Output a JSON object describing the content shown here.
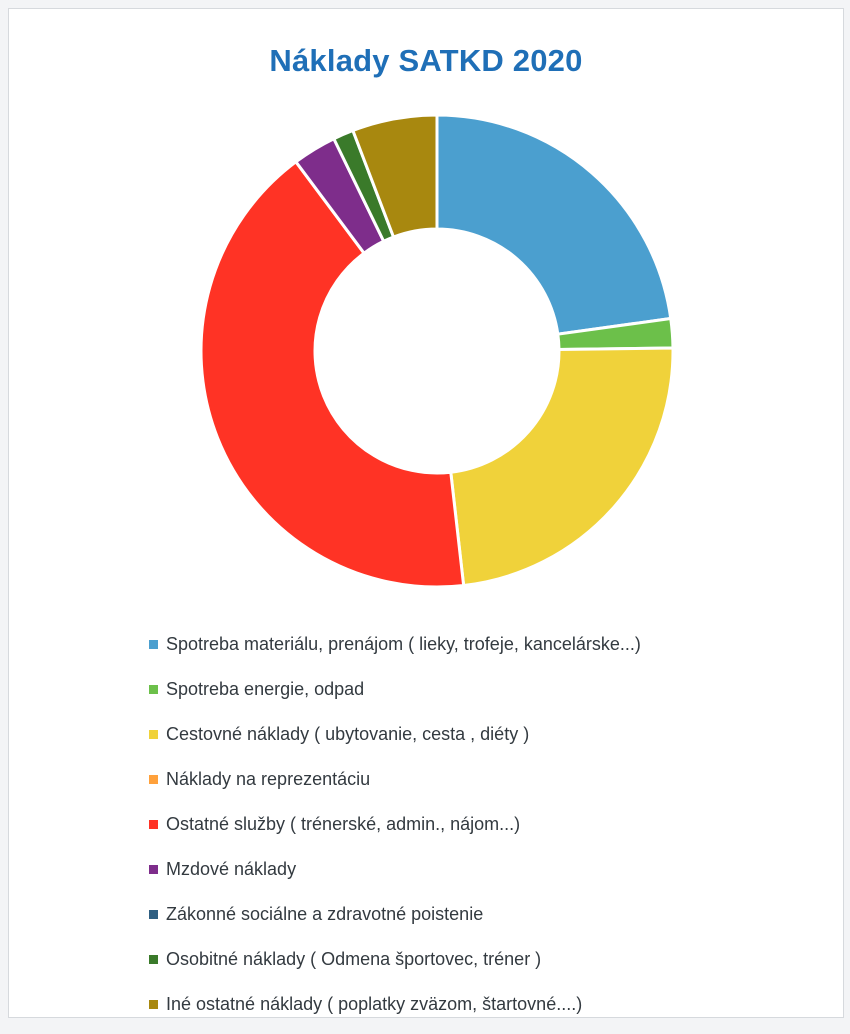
{
  "chart_data": {
    "type": "pie",
    "title": "Náklady  SATKD 2020",
    "legend_position": "bottom",
    "slices": [
      {
        "label": "Spotreba materiálu, prenájom ( lieky, trofeje, kancelárske...)",
        "value": 22.8,
        "color": "#4b9fcf"
      },
      {
        "label": "Spotreba energie, odpad",
        "value": 2.0,
        "color": "#6cc04a"
      },
      {
        "label": "Cestovné náklady ( ubytovanie, cesta , diéty )",
        "value": 23.4,
        "color": "#f0d23a"
      },
      {
        "label": "Náklady na reprezentáciu",
        "value": 0,
        "color": "#ffa13b"
      },
      {
        "label": "Ostatné služby ( trénerské, admin., nájom...)",
        "value": 41.6,
        "color": "#ff3325"
      },
      {
        "label": "Mzdové náklady",
        "value": 3.0,
        "color": "#7e2d8b"
      },
      {
        "label": "Zákonné sociálne a zdravotné poistenie",
        "value": 0,
        "color": "#2f5f82"
      },
      {
        "label": "Osobitné náklady ( Odmena športovec, tréner )",
        "value": 1.4,
        "color": "#3a7a2a"
      },
      {
        "label": "Iné ostatné náklady ( poplatky zväzom, štartovné....)",
        "value": 5.8,
        "color": "#a8880f"
      }
    ]
  }
}
